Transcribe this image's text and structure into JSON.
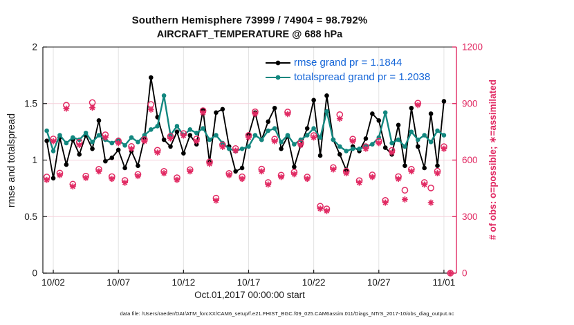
{
  "title": {
    "line1": "Southern Hemisphere 73999 / 74904 = 98.792%",
    "line2": "AIRCRAFT_TEMPERATURE @ 688 hPa"
  },
  "colors": {
    "magenta": "#e12a63",
    "teal": "#12877f",
    "black": "#000000",
    "legend_blue": "#1465d8",
    "grid_gray": "#e3e3e3",
    "grid_pink": "#f6cfda",
    "ink": "#1a1a1a"
  },
  "legend": [
    {
      "label": "rmse grand pr = 1.1844",
      "series": "rmse",
      "color": "#000000"
    },
    {
      "label": "totalspread grand pr = 1.2038",
      "series": "totalspread",
      "color": "#12877f"
    }
  ],
  "footer_text": "data file: /Users/raeder/DAI/ATM_forcXX/CAM6_setup/f.e21.FHIST_BGC.f09_025.CAM6assim.011/Diags_NTrS_2017-10/obs_diag_output.nc",
  "chart_data": {
    "type": "line",
    "title": "Southern Hemisphere 73999 / 74904 = 98.792% — AIRCRAFT_TEMPERATURE @ 688 hPa",
    "xlabel": "Oct.01,2017 00:00:00 start",
    "x_domain_days_from_oct1": [
      0.2,
      31.96
    ],
    "x_ticks": [
      {
        "day": 1,
        "label": "10/02"
      },
      {
        "day": 6,
        "label": "10/07"
      },
      {
        "day": 11,
        "label": "10/12"
      },
      {
        "day": 16,
        "label": "10/17"
      },
      {
        "day": 21,
        "label": "10/22"
      },
      {
        "day": 26,
        "label": "10/27"
      },
      {
        "day": 31,
        "label": "11/01"
      }
    ],
    "left_axis": {
      "label": "rmse and totalspread",
      "range": [
        0,
        2
      ],
      "ticks": [
        "0",
        "0.5",
        "1",
        "1.5",
        "2"
      ],
      "tick_values": [
        0,
        0.5,
        1,
        1.5,
        2
      ],
      "color": "#1a1a1a"
    },
    "right_axis": {
      "label": "# of obs: o=possible; ∗=assimilated",
      "range": [
        0,
        1200
      ],
      "ticks": [
        "0",
        "300",
        "600",
        "900",
        "1200"
      ],
      "tick_values": [
        0,
        300,
        600,
        900,
        1200
      ],
      "color": "#e12a63"
    },
    "grid": {
      "vertical": true,
      "horizontal_at_left_ticks": [
        0.5,
        1,
        1.5
      ]
    },
    "series": [
      {
        "name": "rmse",
        "axis": "left",
        "color": "#000000",
        "marker": "filled-circle",
        "line": true,
        "grand_pr": 1.1844,
        "days": [
          0.5,
          1,
          1.5,
          2,
          2.5,
          3,
          3.5,
          4,
          4.5,
          5,
          5.5,
          6,
          6.5,
          7,
          7.5,
          8,
          8.5,
          9,
          9.5,
          10,
          10.5,
          11,
          11.5,
          12,
          12.5,
          13,
          13.5,
          14,
          14.5,
          15,
          15.5,
          16,
          16.5,
          17,
          17.5,
          18,
          18.5,
          19,
          19.5,
          20,
          20.5,
          21,
          21.5,
          22,
          22.5,
          23,
          23.5,
          24,
          24.5,
          25,
          25.5,
          26,
          26.5,
          27,
          27.5,
          28,
          28.5,
          29,
          29.5,
          30,
          30.5,
          31
        ],
        "values": [
          1.17,
          0.84,
          1.2,
          0.96,
          1.18,
          1.05,
          1.22,
          1.1,
          1.35,
          0.99,
          1.02,
          1.09,
          0.93,
          1.08,
          0.95,
          1.2,
          1.73,
          1.38,
          1.18,
          1.12,
          1.25,
          1.06,
          1.22,
          1.14,
          1.44,
          0.98,
          1.42,
          1.45,
          1.12,
          0.9,
          0.93,
          1.22,
          1.42,
          1.18,
          1.34,
          1.46,
          1.1,
          1.21,
          0.94,
          1.13,
          1.28,
          1.53,
          1.04,
          1.57,
          1.18,
          1.05,
          0.91,
          1.12,
          1.08,
          1.19,
          1.41,
          1.35,
          1.11,
          1.05,
          1.31,
          0.95,
          1.46,
          1.12,
          0.93,
          1.41,
          0.95,
          1.52
        ]
      },
      {
        "name": "totalspread",
        "axis": "left",
        "color": "#12877f",
        "marker": "filled-circle",
        "line": true,
        "grand_pr": 1.2038,
        "days": [
          0.5,
          1,
          1.5,
          2,
          2.5,
          3,
          3.5,
          4,
          4.5,
          5,
          5.5,
          6,
          6.5,
          7,
          7.5,
          8,
          8.5,
          9,
          9.5,
          10,
          10.5,
          11,
          11.5,
          12,
          12.5,
          13,
          13.5,
          14,
          14.5,
          15,
          15.5,
          16,
          16.5,
          17,
          17.5,
          18,
          18.5,
          19,
          19.5,
          20,
          20.5,
          21,
          21.5,
          22,
          22.5,
          23,
          23.5,
          24,
          24.5,
          25,
          25.5,
          26,
          26.5,
          27,
          27.5,
          28,
          28.5,
          29,
          29.5,
          30,
          30.5,
          31
        ],
        "values": [
          1.26,
          1.08,
          1.22,
          1.15,
          1.2,
          1.18,
          1.24,
          1.16,
          1.22,
          1.18,
          1.15,
          1.18,
          1.13,
          1.2,
          1.16,
          1.22,
          1.27,
          1.3,
          1.57,
          1.22,
          1.3,
          1.22,
          1.27,
          1.24,
          1.28,
          1.18,
          1.22,
          1.15,
          1.1,
          1.08,
          1.1,
          1.12,
          1.22,
          1.18,
          1.26,
          1.28,
          1.16,
          1.22,
          1.14,
          1.18,
          1.22,
          1.28,
          1.2,
          1.43,
          1.18,
          1.12,
          1.08,
          1.1,
          1.1,
          1.12,
          1.14,
          1.2,
          1.42,
          1.15,
          1.18,
          1.12,
          1.25,
          1.18,
          1.22,
          1.16,
          1.26,
          1.22
        ]
      },
      {
        "name": "possible",
        "axis": "right",
        "color": "#e12a63",
        "marker": "open-circle",
        "line": false,
        "days": [
          0.5,
          1,
          1.5,
          2,
          2.5,
          3,
          3.5,
          4,
          4.5,
          5,
          5.5,
          6,
          6.5,
          7,
          7.5,
          8,
          8.5,
          9,
          9.5,
          10,
          10.5,
          11,
          11.5,
          12,
          12.5,
          13,
          13.5,
          14,
          14.5,
          15,
          15.5,
          16,
          16.5,
          17,
          17.5,
          18,
          18.5,
          19,
          19.5,
          20,
          20.5,
          21,
          21.5,
          22,
          22.5,
          23,
          23.5,
          24,
          24.5,
          25,
          25.5,
          26,
          26.5,
          27,
          27.5,
          28,
          28.5,
          29,
          29.5,
          30,
          30.5,
          31,
          31.5
        ],
        "values": [
          510,
          712,
          531,
          891,
          472,
          695,
          515,
          905,
          551,
          734,
          512,
          701,
          492,
          672,
          524,
          709,
          895,
          652,
          540,
          726,
          506,
          741,
          549,
          712,
          862,
          590,
          398,
          681,
          529,
          661,
          511,
          731,
          856,
          552,
          481,
          711,
          520,
          855,
          536,
          691,
          510,
          730,
          355,
          341,
          560,
          841,
          541,
          711,
          491,
          671,
          521,
          700,
          386,
          651,
          512,
          440,
          551,
          902,
          481,
          452,
          541,
          671,
          0
        ]
      },
      {
        "name": "assimilated",
        "axis": "right",
        "color": "#e12a63",
        "marker": "asterisk",
        "line": false,
        "days": [
          0.5,
          1,
          1.5,
          2,
          2.5,
          3,
          3.5,
          4,
          4.5,
          5,
          5.5,
          6,
          6.5,
          7,
          7.5,
          8,
          8.5,
          9,
          9.5,
          10,
          10.5,
          11,
          11.5,
          12,
          12.5,
          13,
          13.5,
          14,
          14.5,
          15,
          15.5,
          16,
          16.5,
          17,
          17.5,
          18,
          18.5,
          19,
          19.5,
          20,
          20.5,
          21,
          21.5,
          22,
          22.5,
          23,
          23.5,
          24,
          24.5,
          25,
          25.5,
          26,
          26.5,
          27,
          27.5,
          28,
          28.5,
          29,
          29.5,
          30,
          30.5,
          31,
          31.5
        ],
        "values": [
          495,
          700,
          520,
          873,
          460,
          680,
          505,
          878,
          540,
          720,
          500,
          690,
          480,
          660,
          515,
          700,
          868,
          640,
          530,
          715,
          495,
          730,
          540,
          700,
          851,
          580,
          385,
          670,
          520,
          650,
          500,
          720,
          845,
          540,
          470,
          700,
          510,
          844,
          525,
          680,
          500,
          720,
          342,
          330,
          550,
          820,
          530,
          700,
          480,
          660,
          510,
          690,
          374,
          640,
          500,
          391,
          540,
          892,
          470,
          374,
          530,
          660,
          0
        ]
      }
    ]
  }
}
